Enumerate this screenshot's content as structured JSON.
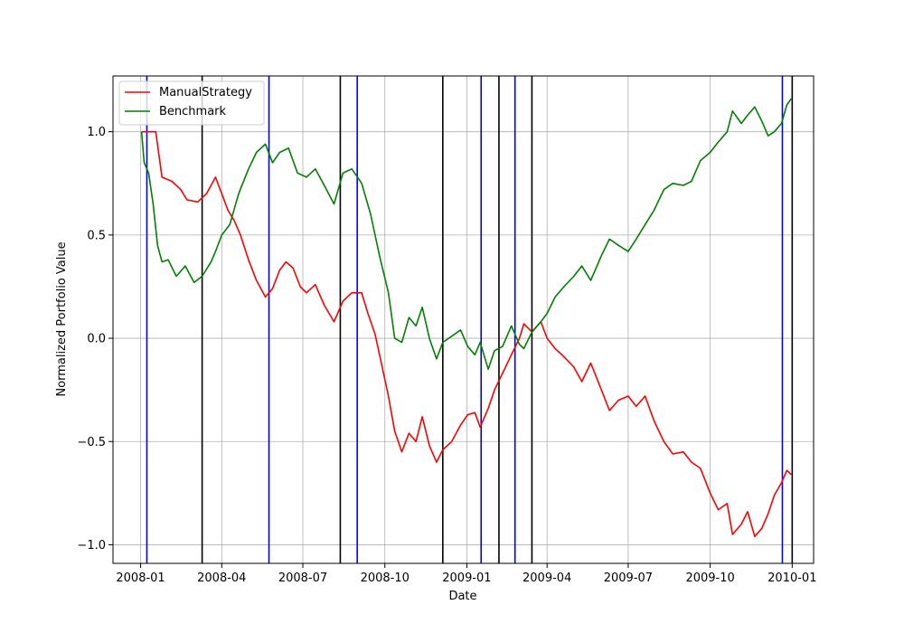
{
  "chart_data": {
    "type": "line",
    "xlabel": "Date",
    "ylabel": "Normalized Portfolio Value",
    "xlim": [
      "2007-12-01",
      "2010-01-25"
    ],
    "ylim": [
      -1.09,
      1.27
    ],
    "grid": true,
    "legend_position": "upper-left",
    "x_ticks": [
      "2008-01",
      "2008-04",
      "2008-07",
      "2008-10",
      "2009-01",
      "2009-04",
      "2009-07",
      "2009-10",
      "2010-01"
    ],
    "y_ticks": [
      1.0,
      0.5,
      0.0,
      -0.5,
      -1.0
    ],
    "y_tick_labels": [
      "1.0",
      "0.5",
      "0.0",
      "−0.5",
      "−1.0"
    ],
    "series": [
      {
        "name": "ManualStrategy",
        "color": "#ff0000",
        "points": [
          [
            "2008-01-02",
            1.0
          ],
          [
            "2008-01-10",
            1.0
          ],
          [
            "2008-01-18",
            1.0
          ],
          [
            "2008-01-25",
            0.78
          ],
          [
            "2008-02-05",
            0.76
          ],
          [
            "2008-02-15",
            0.72
          ],
          [
            "2008-02-22",
            0.67
          ],
          [
            "2008-03-05",
            0.66
          ],
          [
            "2008-03-15",
            0.7
          ],
          [
            "2008-03-25",
            0.78
          ],
          [
            "2008-04-01",
            0.7
          ],
          [
            "2008-04-08",
            0.62
          ],
          [
            "2008-04-15",
            0.57
          ],
          [
            "2008-04-22",
            0.5
          ],
          [
            "2008-05-01",
            0.38
          ],
          [
            "2008-05-10",
            0.28
          ],
          [
            "2008-05-20",
            0.2
          ],
          [
            "2008-05-28",
            0.24
          ],
          [
            "2008-06-05",
            0.33
          ],
          [
            "2008-06-12",
            0.37
          ],
          [
            "2008-06-20",
            0.34
          ],
          [
            "2008-06-28",
            0.25
          ],
          [
            "2008-07-05",
            0.22
          ],
          [
            "2008-07-15",
            0.26
          ],
          [
            "2008-07-25",
            0.16
          ],
          [
            "2008-08-05",
            0.08
          ],
          [
            "2008-08-15",
            0.18
          ],
          [
            "2008-08-25",
            0.22
          ],
          [
            "2008-09-05",
            0.22
          ],
          [
            "2008-09-12",
            0.12
          ],
          [
            "2008-09-20",
            0.02
          ],
          [
            "2008-09-28",
            -0.14
          ],
          [
            "2008-10-05",
            -0.28
          ],
          [
            "2008-10-12",
            -0.45
          ],
          [
            "2008-10-20",
            -0.55
          ],
          [
            "2008-10-28",
            -0.46
          ],
          [
            "2008-11-05",
            -0.5
          ],
          [
            "2008-11-12",
            -0.38
          ],
          [
            "2008-11-20",
            -0.52
          ],
          [
            "2008-11-28",
            -0.6
          ],
          [
            "2008-12-05",
            -0.54
          ],
          [
            "2008-12-15",
            -0.5
          ],
          [
            "2008-12-25",
            -0.42
          ],
          [
            "2009-01-02",
            -0.37
          ],
          [
            "2009-01-10",
            -0.36
          ],
          [
            "2009-01-16",
            -0.43
          ],
          [
            "2009-01-25",
            -0.34
          ],
          [
            "2009-02-01",
            -0.25
          ],
          [
            "2009-02-10",
            -0.17
          ],
          [
            "2009-02-20",
            -0.08
          ],
          [
            "2009-03-01",
            0.0
          ],
          [
            "2009-03-06",
            0.07
          ],
          [
            "2009-03-15",
            0.03
          ],
          [
            "2009-03-25",
            0.08
          ],
          [
            "2009-04-01",
            0.0
          ],
          [
            "2009-04-10",
            -0.05
          ],
          [
            "2009-04-20",
            -0.09
          ],
          [
            "2009-05-01",
            -0.14
          ],
          [
            "2009-05-10",
            -0.21
          ],
          [
            "2009-05-20",
            -0.12
          ],
          [
            "2009-06-01",
            -0.25
          ],
          [
            "2009-06-10",
            -0.35
          ],
          [
            "2009-06-20",
            -0.3
          ],
          [
            "2009-07-01",
            -0.28
          ],
          [
            "2009-07-10",
            -0.33
          ],
          [
            "2009-07-20",
            -0.28
          ],
          [
            "2009-07-30",
            -0.4
          ],
          [
            "2009-08-10",
            -0.5
          ],
          [
            "2009-08-20",
            -0.56
          ],
          [
            "2009-09-01",
            -0.55
          ],
          [
            "2009-09-10",
            -0.6
          ],
          [
            "2009-09-20",
            -0.63
          ],
          [
            "2009-10-01",
            -0.75
          ],
          [
            "2009-10-10",
            -0.83
          ],
          [
            "2009-10-20",
            -0.8
          ],
          [
            "2009-10-26",
            -0.95
          ],
          [
            "2009-11-05",
            -0.9
          ],
          [
            "2009-11-12",
            -0.84
          ],
          [
            "2009-11-20",
            -0.96
          ],
          [
            "2009-11-28",
            -0.92
          ],
          [
            "2009-12-05",
            -0.85
          ],
          [
            "2009-12-12",
            -0.76
          ],
          [
            "2009-12-20",
            -0.7
          ],
          [
            "2009-12-26",
            -0.64
          ],
          [
            "2009-12-31",
            -0.66
          ]
        ]
      },
      {
        "name": "Benchmark",
        "color": "#008000",
        "points": [
          [
            "2008-01-02",
            1.0
          ],
          [
            "2008-01-05",
            0.85
          ],
          [
            "2008-01-10",
            0.8
          ],
          [
            "2008-01-15",
            0.65
          ],
          [
            "2008-01-20",
            0.45
          ],
          [
            "2008-01-25",
            0.37
          ],
          [
            "2008-02-01",
            0.38
          ],
          [
            "2008-02-10",
            0.3
          ],
          [
            "2008-02-20",
            0.35
          ],
          [
            "2008-03-01",
            0.27
          ],
          [
            "2008-03-10",
            0.3
          ],
          [
            "2008-03-20",
            0.37
          ],
          [
            "2008-03-25",
            0.42
          ],
          [
            "2008-04-01",
            0.5
          ],
          [
            "2008-04-10",
            0.55
          ],
          [
            "2008-04-20",
            0.7
          ],
          [
            "2008-05-01",
            0.82
          ],
          [
            "2008-05-10",
            0.9
          ],
          [
            "2008-05-20",
            0.94
          ],
          [
            "2008-05-28",
            0.85
          ],
          [
            "2008-06-05",
            0.9
          ],
          [
            "2008-06-15",
            0.92
          ],
          [
            "2008-06-25",
            0.8
          ],
          [
            "2008-07-05",
            0.78
          ],
          [
            "2008-07-15",
            0.82
          ],
          [
            "2008-07-25",
            0.74
          ],
          [
            "2008-08-05",
            0.65
          ],
          [
            "2008-08-15",
            0.8
          ],
          [
            "2008-08-25",
            0.82
          ],
          [
            "2008-09-05",
            0.75
          ],
          [
            "2008-09-15",
            0.6
          ],
          [
            "2008-09-25",
            0.4
          ],
          [
            "2008-10-05",
            0.22
          ],
          [
            "2008-10-12",
            0.0
          ],
          [
            "2008-10-20",
            -0.02
          ],
          [
            "2008-10-28",
            0.1
          ],
          [
            "2008-11-05",
            0.06
          ],
          [
            "2008-11-12",
            0.15
          ],
          [
            "2008-11-20",
            0.0
          ],
          [
            "2008-11-28",
            -0.1
          ],
          [
            "2008-12-05",
            -0.02
          ],
          [
            "2008-12-15",
            0.01
          ],
          [
            "2008-12-25",
            0.04
          ],
          [
            "2009-01-02",
            -0.04
          ],
          [
            "2009-01-10",
            -0.08
          ],
          [
            "2009-01-16",
            -0.02
          ],
          [
            "2009-01-25",
            -0.15
          ],
          [
            "2009-02-01",
            -0.06
          ],
          [
            "2009-02-10",
            -0.04
          ],
          [
            "2009-02-20",
            0.06
          ],
          [
            "2009-03-01",
            -0.03
          ],
          [
            "2009-03-06",
            -0.05
          ],
          [
            "2009-03-15",
            0.03
          ],
          [
            "2009-03-25",
            0.08
          ],
          [
            "2009-04-01",
            0.12
          ],
          [
            "2009-04-10",
            0.2
          ],
          [
            "2009-04-20",
            0.25
          ],
          [
            "2009-05-01",
            0.3
          ],
          [
            "2009-05-10",
            0.35
          ],
          [
            "2009-05-20",
            0.28
          ],
          [
            "2009-06-01",
            0.4
          ],
          [
            "2009-06-10",
            0.48
          ],
          [
            "2009-06-20",
            0.45
          ],
          [
            "2009-07-01",
            0.42
          ],
          [
            "2009-07-10",
            0.48
          ],
          [
            "2009-07-20",
            0.55
          ],
          [
            "2009-07-30",
            0.62
          ],
          [
            "2009-08-10",
            0.72
          ],
          [
            "2009-08-20",
            0.75
          ],
          [
            "2009-09-01",
            0.74
          ],
          [
            "2009-09-10",
            0.76
          ],
          [
            "2009-09-20",
            0.86
          ],
          [
            "2009-10-01",
            0.9
          ],
          [
            "2009-10-10",
            0.95
          ],
          [
            "2009-10-20",
            1.0
          ],
          [
            "2009-10-26",
            1.1
          ],
          [
            "2009-11-05",
            1.04
          ],
          [
            "2009-11-12",
            1.08
          ],
          [
            "2009-11-20",
            1.12
          ],
          [
            "2009-11-28",
            1.05
          ],
          [
            "2009-12-05",
            0.98
          ],
          [
            "2009-12-12",
            1.0
          ],
          [
            "2009-12-20",
            1.04
          ],
          [
            "2009-12-26",
            1.13
          ],
          [
            "2009-12-31",
            1.16
          ]
        ]
      }
    ],
    "vertical_lines": {
      "blue": {
        "color": "#0000ff",
        "dates": [
          "2008-01-08",
          "2008-05-24",
          "2008-08-31",
          "2009-01-17",
          "2009-02-24",
          "2009-12-21"
        ]
      },
      "black": {
        "color": "#000000",
        "dates": [
          "2008-03-10",
          "2008-08-12",
          "2008-12-05",
          "2009-02-06",
          "2009-03-15",
          "2010-01-01"
        ]
      }
    }
  }
}
